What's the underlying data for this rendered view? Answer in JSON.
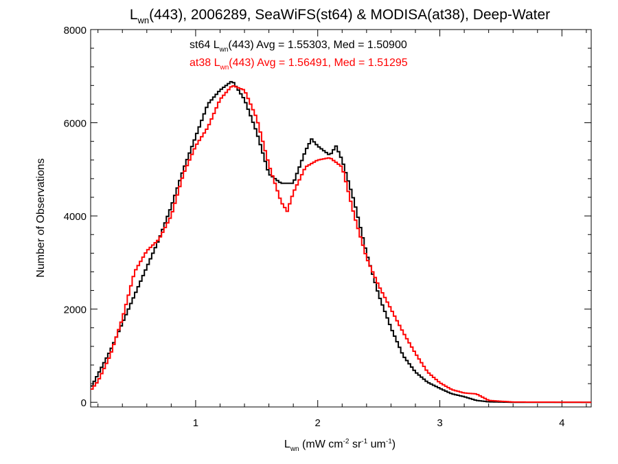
{
  "chart_data": {
    "type": "line",
    "title": {
      "pre": "L",
      "sub": "wn",
      "post": "(443), 2006289, SeaWiFS(st64) & MODISA(at38), Deep-Water"
    },
    "xlabel": {
      "pre": "L",
      "sub": "wn",
      "mid1": " (mW cm",
      "sup1": "-2",
      "mid2": " sr",
      "sup2": "-1",
      "mid3": " um",
      "sup3": "-1",
      "post": ")"
    },
    "ylabel": "Number of Observations",
    "xlim": [
      0.14,
      4.24
    ],
    "ylim": [
      -100,
      8000
    ],
    "x_ticks": [
      1,
      2,
      3,
      4
    ],
    "y_ticks": [
      0,
      2000,
      4000,
      6000,
      8000
    ],
    "grid": false,
    "series": [
      {
        "name": "st64",
        "color": "#000000",
        "annotation": {
          "pre": "st64 L",
          "sub": "wn",
          "post": "(443) Avg = 1.55303, Med = 1.50900"
        },
        "x": [
          0.14,
          0.2,
          0.3,
          0.4,
          0.5,
          0.6,
          0.7,
          0.8,
          0.9,
          1.0,
          1.1,
          1.2,
          1.3,
          1.4,
          1.5,
          1.6,
          1.7,
          1.8,
          1.9,
          1.95,
          2.0,
          2.1,
          2.15,
          2.2,
          2.3,
          2.4,
          2.5,
          2.6,
          2.7,
          2.8,
          2.9,
          3.0,
          3.1,
          3.2,
          3.3,
          3.4,
          3.6,
          4.24
        ],
        "y": [
          300,
          600,
          1100,
          1700,
          2300,
          2900,
          3500,
          4200,
          5000,
          5700,
          6400,
          6700,
          6900,
          6500,
          5800,
          4900,
          4700,
          4700,
          5400,
          5650,
          5500,
          5300,
          5500,
          5200,
          4300,
          3200,
          2300,
          1600,
          1000,
          650,
          430,
          300,
          180,
          120,
          40,
          10,
          0,
          0
        ]
      },
      {
        "name": "at38",
        "color": "#ff0000",
        "annotation": {
          "pre": "at38 L",
          "sub": "wn",
          "post": "(443) Avg = 1.56491, Med = 1.51295"
        },
        "x": [
          0.14,
          0.2,
          0.3,
          0.4,
          0.5,
          0.6,
          0.7,
          0.8,
          0.9,
          1.0,
          1.1,
          1.2,
          1.3,
          1.4,
          1.5,
          1.6,
          1.7,
          1.75,
          1.8,
          1.9,
          2.0,
          2.1,
          2.2,
          2.3,
          2.4,
          2.5,
          2.6,
          2.7,
          2.8,
          2.9,
          3.0,
          3.1,
          3.2,
          3.3,
          3.4,
          3.6,
          4.24
        ],
        "y": [
          250,
          450,
          1000,
          1800,
          2800,
          3250,
          3500,
          4000,
          4900,
          5500,
          5900,
          6500,
          6800,
          6700,
          6100,
          5100,
          4300,
          4100,
          4500,
          5050,
          5200,
          5250,
          5050,
          4000,
          3100,
          2500,
          2000,
          1500,
          1050,
          650,
          420,
          270,
          200,
          180,
          40,
          5,
          0
        ]
      }
    ]
  }
}
